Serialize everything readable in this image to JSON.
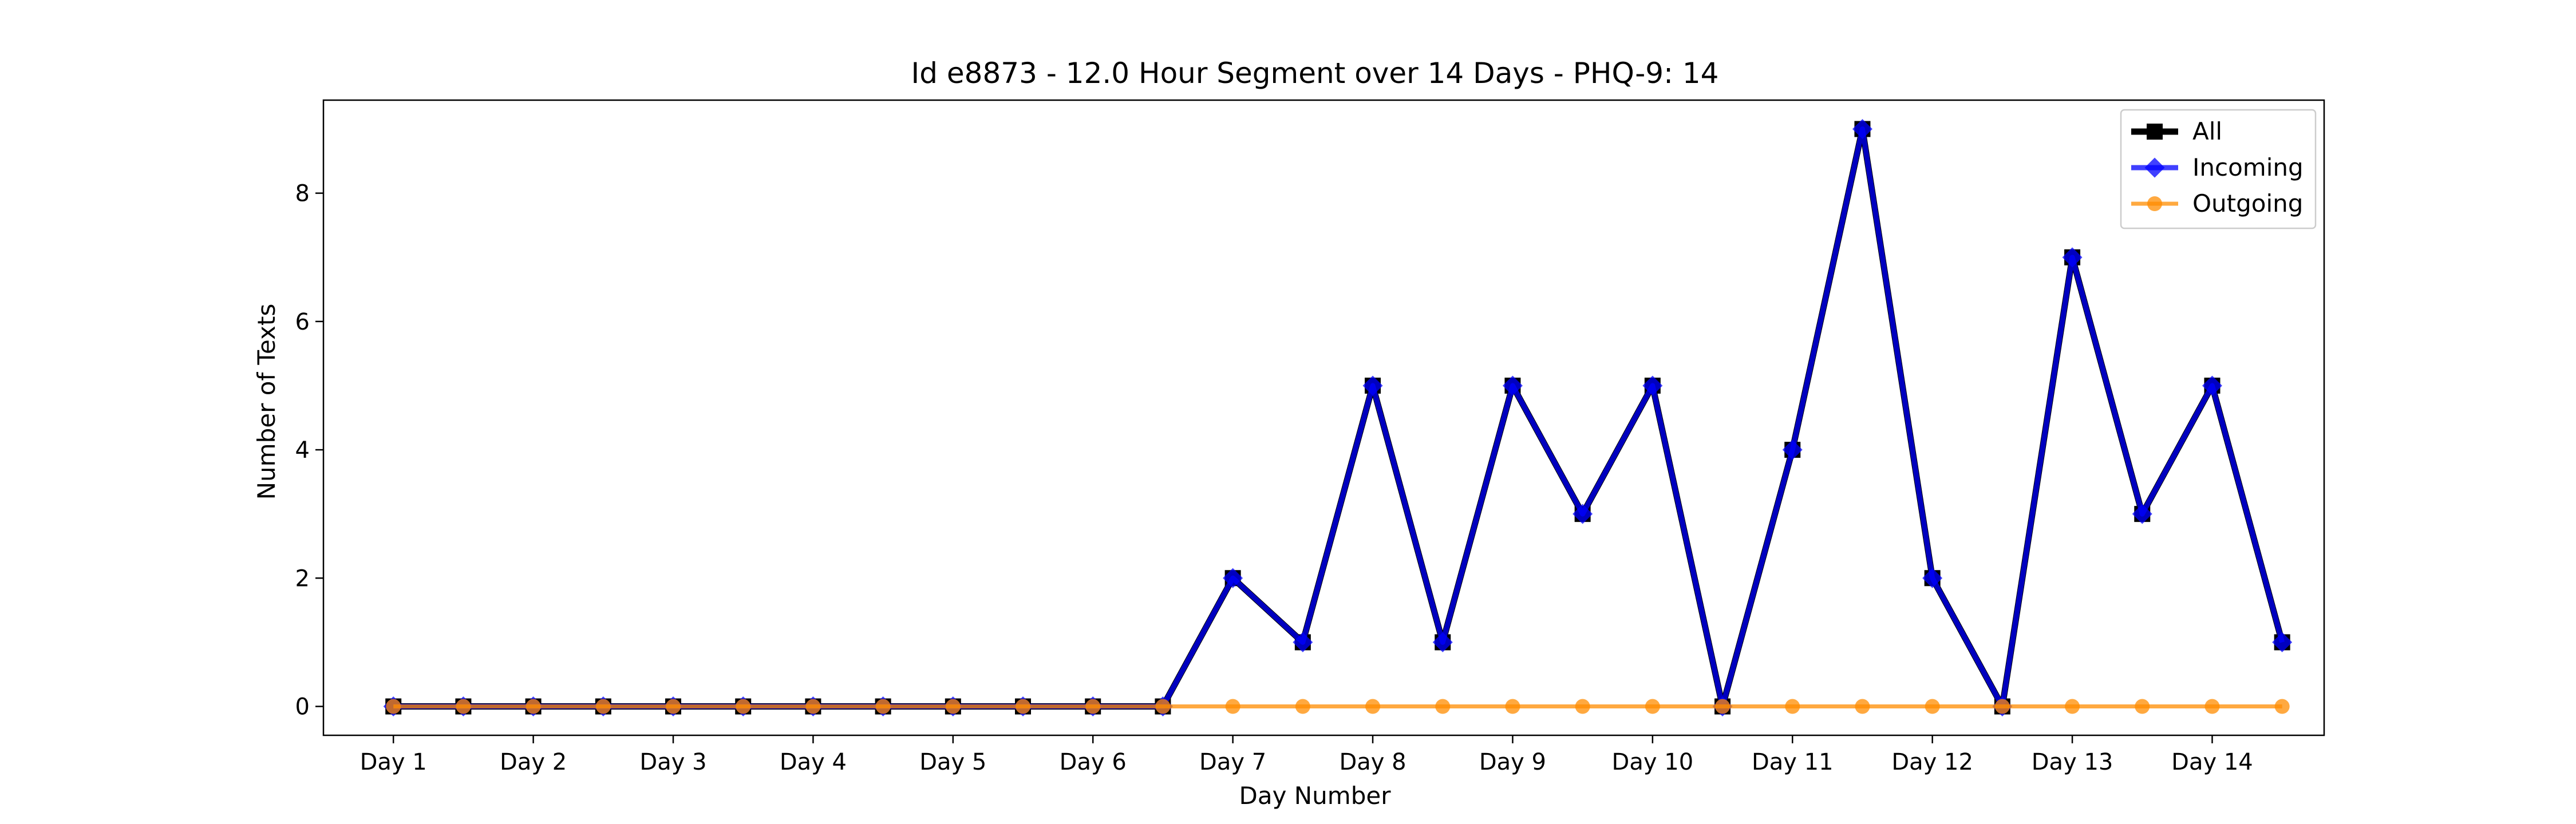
{
  "chart_data": {
    "type": "line",
    "title": "Id e8873 - 12.0 Hour Segment over 14 Days - PHQ-9: 14",
    "xlabel": "Day Number",
    "ylabel": "Number of Texts",
    "xlim": [
      0.5,
      14.8
    ],
    "ylim": [
      -0.45,
      9.45
    ],
    "yticks": [
      0,
      2,
      4,
      6,
      8
    ],
    "xticks": [
      1,
      2,
      3,
      4,
      5,
      6,
      7,
      8,
      9,
      10,
      11,
      12,
      13,
      14
    ],
    "xtick_labels": [
      "Day 1",
      "Day 2",
      "Day 3",
      "Day 4",
      "Day 5",
      "Day 6",
      "Day 7",
      "Day 8",
      "Day 9",
      "Day 10",
      "Day 11",
      "Day 12",
      "Day 13",
      "Day 14"
    ],
    "x": [
      1,
      1.5,
      2,
      2.5,
      3,
      3.5,
      4,
      4.5,
      5,
      5.5,
      6,
      6.5,
      7,
      7.5,
      8,
      8.5,
      9,
      9.5,
      10,
      10.5,
      11,
      11.5,
      12,
      12.5,
      13,
      13.5,
      14,
      14.5
    ],
    "grid": false,
    "legend_position": "top-right",
    "series": [
      {
        "name": "All",
        "color": "#000000",
        "marker": "square",
        "values": [
          0,
          0,
          0,
          0,
          0,
          0,
          0,
          0,
          0,
          0,
          0,
          0,
          2,
          1,
          5,
          1,
          5,
          3,
          5,
          0,
          4,
          9,
          2,
          0,
          7,
          3,
          5,
          1
        ]
      },
      {
        "name": "Incoming",
        "color": "#0000ff",
        "marker": "diamond",
        "values": [
          0,
          0,
          0,
          0,
          0,
          0,
          0,
          0,
          0,
          0,
          0,
          0,
          2,
          1,
          5,
          1,
          5,
          3,
          5,
          0,
          4,
          9,
          2,
          0,
          7,
          3,
          5,
          1
        ]
      },
      {
        "name": "Outgoing",
        "color": "#ff8c00",
        "marker": "circle",
        "values": [
          0,
          0,
          0,
          0,
          0,
          0,
          0,
          0,
          0,
          0,
          0,
          0,
          0,
          0,
          0,
          0,
          0,
          0,
          0,
          0,
          0,
          0,
          0,
          0,
          0,
          0,
          0,
          0
        ]
      }
    ]
  }
}
